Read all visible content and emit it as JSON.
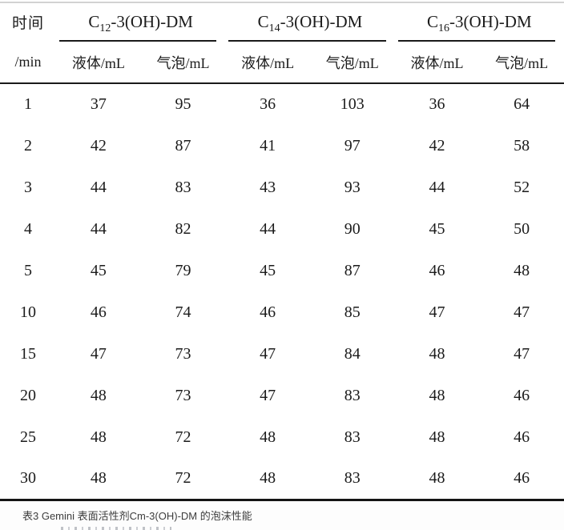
{
  "table": {
    "time_header_top": "时间",
    "time_header_bottom": "/min",
    "groups": [
      {
        "prefix": "C",
        "subscript": "12",
        "suffix": "-3(OH)-DM"
      },
      {
        "prefix": "C",
        "subscript": "14",
        "suffix": "-3(OH)-DM"
      },
      {
        "prefix": "C",
        "subscript": "16",
        "suffix": "-3(OH)-DM"
      }
    ],
    "subheaders": [
      "液体/mL",
      "气泡/mL",
      "液体/mL",
      "气泡/mL",
      "液体/mL",
      "气泡/mL"
    ],
    "rows": [
      {
        "time": "1",
        "values": [
          "37",
          "95",
          "36",
          "103",
          "36",
          "64"
        ]
      },
      {
        "time": "2",
        "values": [
          "42",
          "87",
          "41",
          "97",
          "42",
          "58"
        ]
      },
      {
        "time": "3",
        "values": [
          "44",
          "83",
          "43",
          "93",
          "44",
          "52"
        ]
      },
      {
        "time": "4",
        "values": [
          "44",
          "82",
          "44",
          "90",
          "45",
          "50"
        ]
      },
      {
        "time": "5",
        "values": [
          "45",
          "79",
          "45",
          "87",
          "46",
          "48"
        ]
      },
      {
        "time": "10",
        "values": [
          "46",
          "74",
          "46",
          "85",
          "47",
          "47"
        ]
      },
      {
        "time": "15",
        "values": [
          "47",
          "73",
          "47",
          "84",
          "48",
          "47"
        ]
      },
      {
        "time": "20",
        "values": [
          "48",
          "73",
          "47",
          "83",
          "48",
          "46"
        ]
      },
      {
        "time": "25",
        "values": [
          "48",
          "72",
          "48",
          "83",
          "48",
          "46"
        ]
      },
      {
        "time": "30",
        "values": [
          "48",
          "72",
          "48",
          "83",
          "48",
          "46"
        ]
      }
    ]
  },
  "caption": "表3 Gemini 表面活性剂Cm-3(OH)-DM 的泡沫性能"
}
